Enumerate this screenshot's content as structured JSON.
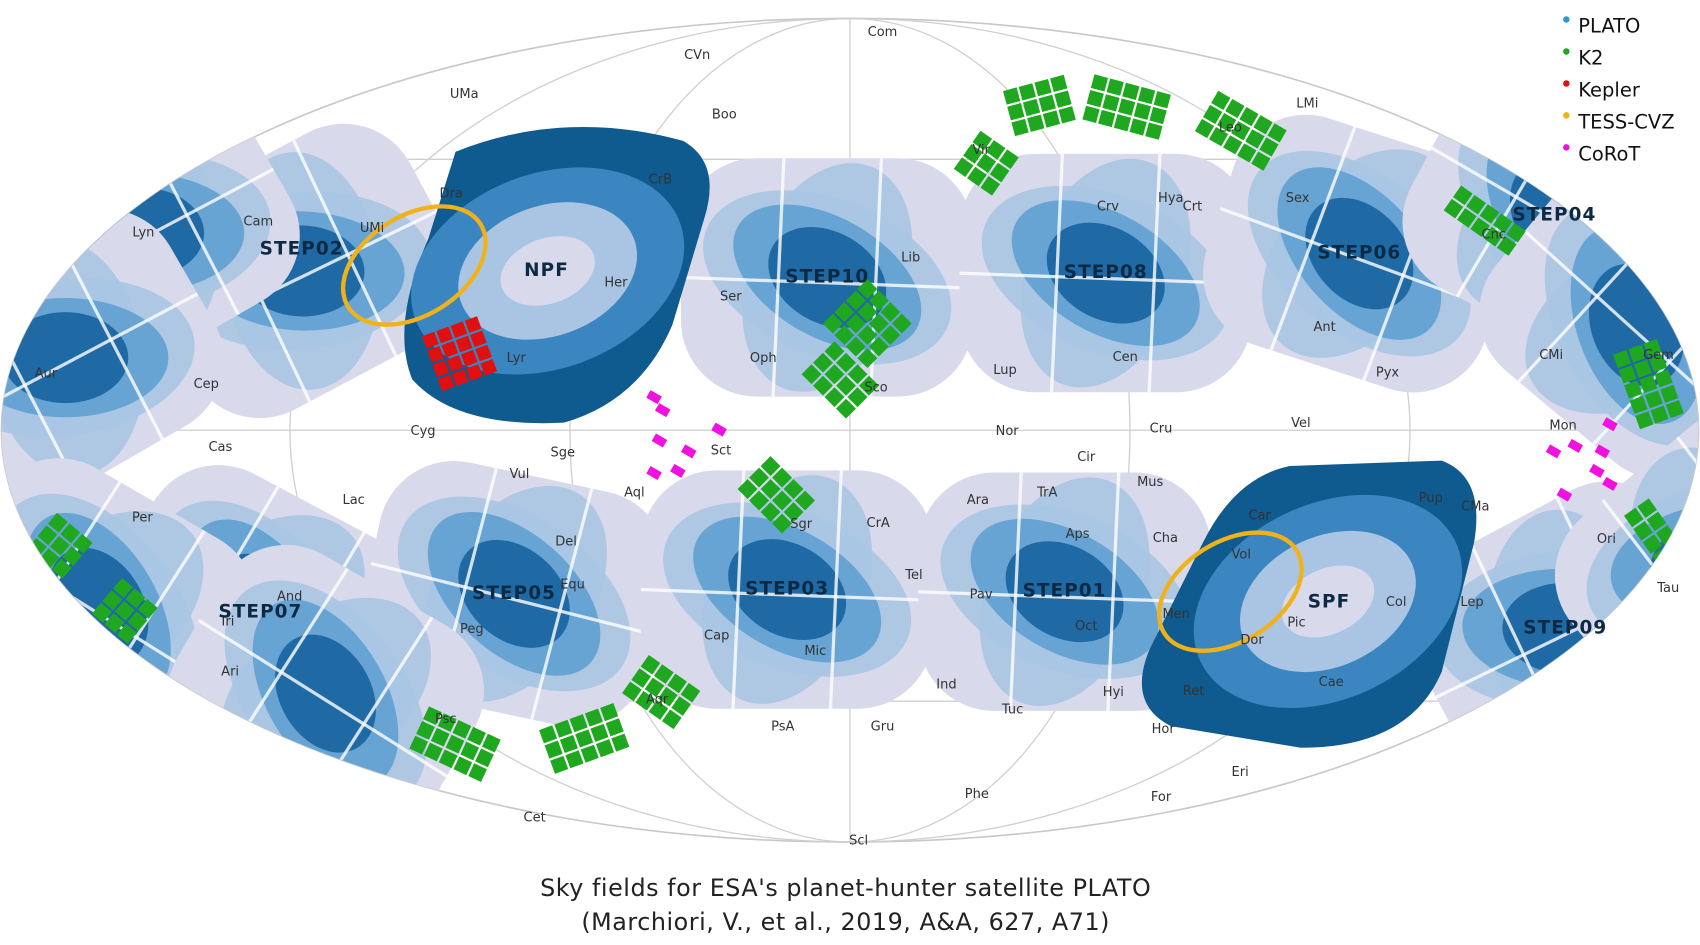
{
  "legend": [
    {
      "label": "PLATO",
      "color": "#2b9bd3"
    },
    {
      "label": "K2",
      "color": "#1fa81f"
    },
    {
      "label": "Kepler",
      "color": "#e01010"
    },
    {
      "label": "TESS-CVZ",
      "color": "#f0b21a"
    },
    {
      "label": "CoRoT",
      "color": "#f010e0"
    }
  ],
  "fields": [
    "STEP02",
    "NPF",
    "STEP10",
    "STEP08",
    "STEP06",
    "STEP04",
    "STEP07",
    "STEP05",
    "STEP03",
    "STEP01",
    "SPF",
    "STEP09"
  ],
  "constellations": [
    "Com",
    "CVn",
    "UMa",
    "Boo",
    "LMi",
    "Vir",
    "Dra",
    "CrB",
    "Cam",
    "UMi",
    "Lyn",
    "Crv",
    "Hya",
    "Crt",
    "Sex",
    "Cnc",
    "Lib",
    "Her",
    "Ser",
    "Ant",
    "Aur",
    "Cep",
    "Oph",
    "Lyr",
    "Sco",
    "Lup",
    "Cen",
    "Pyx",
    "CMi",
    "Gem",
    "Cyg",
    "Nor",
    "Cru",
    "Vel",
    "Mon",
    "Cas",
    "Sge",
    "Sct",
    "Cir",
    "Mus",
    "Vul",
    "Aql",
    "TrA",
    "Ara",
    "Car",
    "Pup",
    "CMa",
    "Lac",
    "Per",
    "Del",
    "CrA",
    "Aps",
    "Cha",
    "Ori",
    "Sgr",
    "Equ",
    "Vol",
    "Tel",
    "Tau",
    "And",
    "Pav",
    "Col",
    "Lep",
    "Tri",
    "Men",
    "Oct",
    "Pic",
    "Peg",
    "Cap",
    "Dor",
    "Mic",
    "Ari",
    "Ind",
    "Ret",
    "Cae",
    "Hyi",
    "Aqr",
    "Tuc",
    "Psc",
    "PsA",
    "Gru",
    "Hor",
    "Eri",
    "Phe",
    "For",
    "Cet",
    "Scl",
    "Leo"
  ],
  "caption": [
    "Sky fields for ESA's planet-hunter satellite PLATO",
    "(Marchiori, V., et al., 2019, A&A, 627, A71)"
  ]
}
